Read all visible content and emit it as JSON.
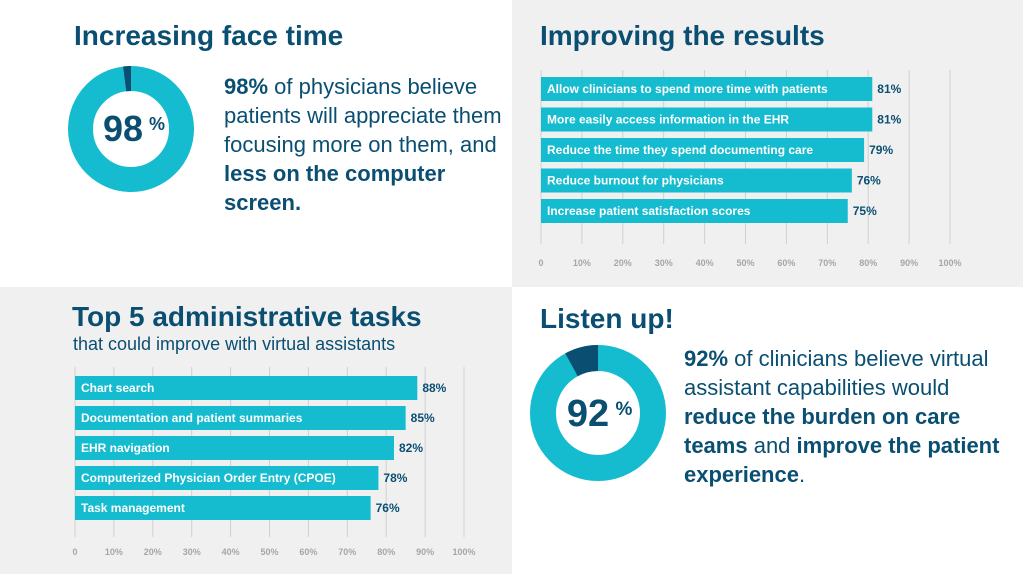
{
  "colors": {
    "accent": "#15bccf",
    "dark": "#0a4f72",
    "grid": "#d0d0d0"
  },
  "face_time": {
    "title": "Increasing face time",
    "percent": 98,
    "percent_value": "98",
    "percent_sign": "%",
    "stat_bold": "98%",
    "stat_text_1": " of physicians believe patients will appreciate them focusing more on them, and ",
    "stat_bold_2": "less on the computer screen."
  },
  "listen_up": {
    "title": "Listen up!",
    "percent": 92,
    "percent_value": "92",
    "percent_sign": "%",
    "stat_bold": "92%",
    "stat_text_1": " of clinicians believe virtual assistant capabilities would ",
    "stat_bold_2": "reduce the burden on care teams",
    "stat_text_2": " and ",
    "stat_bold_3": "improve the patient experience",
    "stat_text_3": "."
  },
  "chart_data": [
    {
      "type": "bar",
      "orientation": "horizontal",
      "title": "Improving the results",
      "categories": [
        "Allow clinicians to spend more time with patients",
        "More easily access information in the EHR",
        "Reduce the time they spend documenting care",
        "Reduce burnout for physicians",
        "Increase patient satisfaction scores"
      ],
      "values": [
        81,
        81,
        79,
        76,
        75
      ],
      "value_labels": [
        "81%",
        "81%",
        "79%",
        "76%",
        "75%"
      ],
      "xlim": [
        0,
        100
      ],
      "ticks": [
        "0",
        "10%",
        "20%",
        "30%",
        "40%",
        "50%",
        "60%",
        "70%",
        "80%",
        "90%",
        "100%"
      ],
      "grid": true
    },
    {
      "type": "bar",
      "orientation": "horizontal",
      "title": "Top 5 administrative tasks",
      "subtitle": "that could improve with virtual assistants",
      "categories": [
        "Chart search",
        "Documentation and patient summaries",
        "EHR navigation",
        "Computerized Physician Order Entry (CPOE)",
        "Task management"
      ],
      "values": [
        88,
        85,
        82,
        78,
        76
      ],
      "value_labels": [
        "88%",
        "85%",
        "82%",
        "78%",
        "76%"
      ],
      "xlim": [
        0,
        100
      ],
      "ticks": [
        "0",
        "10%",
        "20%",
        "30%",
        "40%",
        "50%",
        "60%",
        "70%",
        "80%",
        "90%",
        "100%"
      ],
      "grid": true
    }
  ]
}
